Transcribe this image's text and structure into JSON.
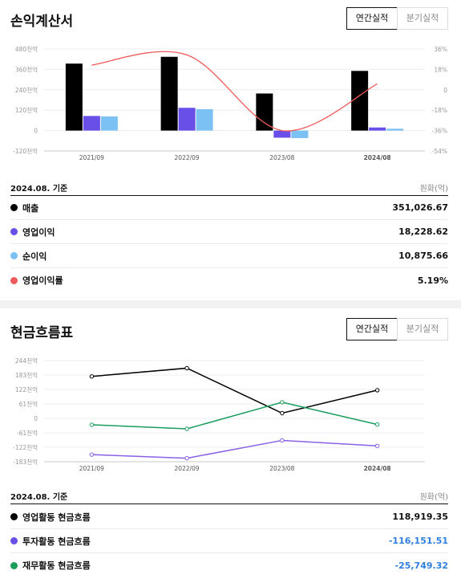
{
  "income": {
    "title": "손익계산서",
    "toggle": {
      "annual": "연간실적",
      "quarterly": "분기실적"
    },
    "basis": "2024.08. 기준",
    "unit": "원화(억)",
    "rows": [
      {
        "label": "매출",
        "value": "351,026.67",
        "color": "#000000",
        "negative": false
      },
      {
        "label": "영업이익",
        "value": "18,228.62",
        "color": "#6a4ee8",
        "negative": false
      },
      {
        "label": "순이익",
        "value": "10,875.66",
        "color": "#7cc1f3",
        "negative": false
      },
      {
        "label": "영업이익률",
        "value": "5.19%",
        "color": "#ef5a5a",
        "negative": false
      }
    ]
  },
  "cash": {
    "title": "현금흐름표",
    "toggle": {
      "annual": "연간실적",
      "quarterly": "분기실적"
    },
    "basis": "2024.08. 기준",
    "unit": "원화(억)",
    "rows": [
      {
        "label": "영업활동 현금흐름",
        "value": "118,919.35",
        "color": "#000000",
        "negative": false
      },
      {
        "label": "투자활동 현금흐름",
        "value": "-116,151.51",
        "color": "#6a4ee8",
        "negative": true
      },
      {
        "label": "재무활동 현금흐름",
        "value": "-25,749.32",
        "color": "#1a9e5c",
        "negative": true
      }
    ]
  },
  "chart_data": [
    {
      "type": "bar",
      "categories": [
        "2021/09",
        "2022/09",
        "2023/08",
        "2024/08"
      ],
      "y_ticks": [
        "480천억",
        "360천억",
        "240천억",
        "120천억",
        "0",
        "-120천억"
      ],
      "y2_ticks": [
        "36%",
        "18%",
        "0",
        "-18%",
        "-36%",
        "-54%"
      ],
      "ylim": [
        -120000,
        480000
      ],
      "y2lim": [
        -54,
        36
      ],
      "series": [
        {
          "name": "매출",
          "color": "#000000",
          "values": [
            394000,
            434000,
            218000,
            351027
          ]
        },
        {
          "name": "영업이익",
          "color": "#6a4ee8",
          "values": [
            86000,
            134000,
            -42000,
            18229
          ]
        },
        {
          "name": "순이익",
          "color": "#7cc1f3",
          "values": [
            83000,
            126000,
            -44000,
            10876
          ]
        },
        {
          "name": "영업이익률",
          "color": "#ef5a5a",
          "axis": "right",
          "type": "line",
          "values": [
            21.8,
            30.8,
            -36.0,
            5.19
          ]
        }
      ],
      "grid": "horizontal"
    },
    {
      "type": "line",
      "categories": [
        "2021/09",
        "2022/09",
        "2023/08",
        "2024/08"
      ],
      "y_ticks": [
        "244천억",
        "183천억",
        "122천억",
        "61천억",
        "0",
        "-61천억",
        "-122천억",
        "-183천억"
      ],
      "ylim": [
        -183000,
        244000
      ],
      "series": [
        {
          "name": "영업활동 현금흐름",
          "color": "#000000",
          "values": [
            177000,
            212000,
            22000,
            118919
          ]
        },
        {
          "name": "투자활동 현금흐름",
          "color": "#8a60e6",
          "values": [
            -153000,
            -168000,
            -93000,
            -116152
          ]
        },
        {
          "name": "재무활동 현금흐름",
          "color": "#1a9e5c",
          "values": [
            -27000,
            -44000,
            68000,
            -25749
          ]
        }
      ],
      "grid": "horizontal"
    }
  ]
}
